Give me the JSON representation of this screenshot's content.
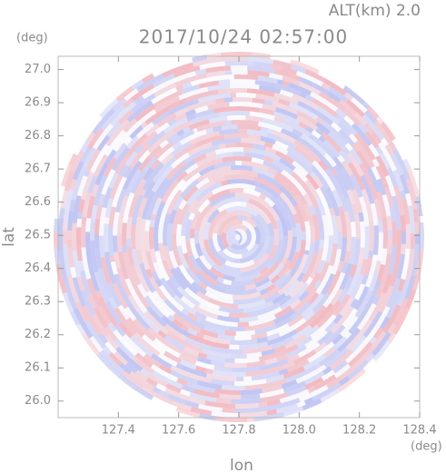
{
  "chart_data": {
    "type": "radar-image",
    "title": "2017/10/24 02:57:00",
    "subtitle": "ALT(km) 2.0",
    "x_label": "lon",
    "y_label": "lat",
    "x_unit": "(deg)",
    "y_unit": "(deg)",
    "xlim": [
      127.2,
      128.4
    ],
    "xticks": [
      {
        "value": 127.4,
        "label": "127.4"
      },
      {
        "value": 127.6,
        "label": "127.6"
      },
      {
        "value": 127.8,
        "label": "127.8"
      },
      {
        "value": 128.0,
        "label": "128.0"
      },
      {
        "value": 128.2,
        "label": "128.2"
      },
      {
        "value": 128.4,
        "label": "128.4"
      }
    ],
    "ylim": [
      25.95,
      27.04
    ],
    "yticks": [
      {
        "value": 26.0,
        "label": "26.0"
      },
      26.1,
      26.2,
      26.3,
      26.4,
      26.5,
      26.6,
      26.7,
      26.8,
      26.9,
      {
        "value": 27.0,
        "label": "27.0"
      }
    ]
  }
}
